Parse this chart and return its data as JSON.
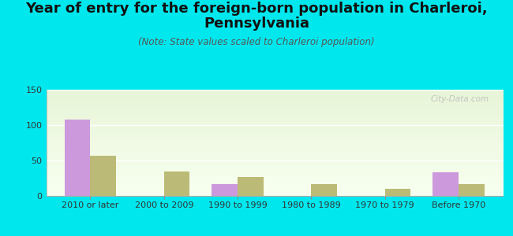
{
  "title_line1": "Year of entry for the foreign-born population in Charleroi,",
  "title_line2": "Pennsylvania",
  "subtitle": "(Note: State values scaled to Charleroi population)",
  "categories": [
    "2010 or later",
    "2000 to 2009",
    "1990 to 1999",
    "1980 to 1989",
    "1970 to 1979",
    "Before 1970"
  ],
  "charleroi_values": [
    108,
    0,
    17,
    0,
    0,
    33
  ],
  "pennsylvania_values": [
    57,
    35,
    27,
    17,
    10,
    17
  ],
  "charleroi_color": "#cc99dd",
  "pennsylvania_color": "#bbbb77",
  "background_color": "#00e8ee",
  "ylim": [
    0,
    150
  ],
  "yticks": [
    0,
    50,
    100,
    150
  ],
  "bar_width": 0.35,
  "watermark": "City-Data.com",
  "title_fontsize": 13,
  "subtitle_fontsize": 8.5,
  "tick_fontsize": 8,
  "legend_fontsize": 10
}
